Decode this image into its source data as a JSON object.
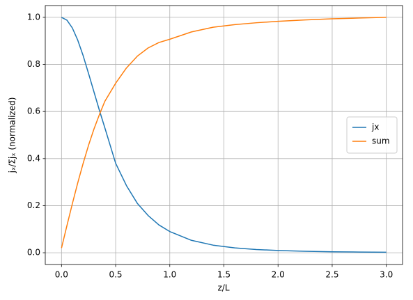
{
  "chart_data": {
    "type": "line",
    "xlabel": "z/L",
    "ylabel": "jₓ/Σjₓ (normalized)",
    "x": [
      0,
      0.05,
      0.1,
      0.15,
      0.2,
      0.25,
      0.3,
      0.35,
      0.4,
      0.5,
      0.6,
      0.7,
      0.8,
      0.9,
      1.0,
      1.2,
      1.4,
      1.6,
      1.8,
      2.0,
      2.25,
      2.5,
      2.75,
      3.0
    ],
    "series": [
      {
        "name": "jx",
        "color": "#1f77b4",
        "values": [
          1,
          0.988,
          0.955,
          0.903,
          0.837,
          0.761,
          0.683,
          0.605,
          0.531,
          0.38,
          0.285,
          0.21,
          0.158,
          0.118,
          0.09,
          0.0527,
          0.0322,
          0.0206,
          0.0137,
          0.0094,
          0.0061,
          0.0041,
          0.0029,
          0.0021
        ]
      },
      {
        "name": "sum",
        "color": "#ff7f0e",
        "values": [
          0.02,
          0.115,
          0.208,
          0.297,
          0.38,
          0.457,
          0.526,
          0.587,
          0.643,
          0.72,
          0.785,
          0.835,
          0.87,
          0.893,
          0.907,
          0.938,
          0.958,
          0.969,
          0.977,
          0.983,
          0.989,
          0.994,
          0.997,
          1.0
        ]
      }
    ],
    "xlim": [
      -0.15,
      3.15
    ],
    "ylim": [
      -0.05,
      1.05
    ],
    "xticks": [
      {
        "value": 0,
        "label": "0.0"
      },
      0.5,
      {
        "value": 1,
        "label": "1.0"
      },
      1.5,
      {
        "value": 2,
        "label": "2.0"
      },
      2.5,
      {
        "value": 3,
        "label": "3.0"
      }
    ],
    "yticks": [
      {
        "value": 0,
        "label": "0.0"
      },
      0.2,
      0.4,
      0.6,
      0.8,
      {
        "value": 1,
        "label": "1.0"
      }
    ],
    "grid": true,
    "legend": "right"
  }
}
